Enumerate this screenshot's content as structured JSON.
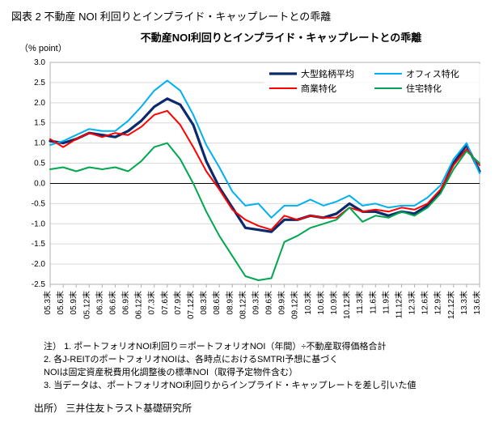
{
  "figure_caption": "図表 2  不動産 NOI 利回りとインプライド・キャップレートとの乖離",
  "chart": {
    "type": "line",
    "title": "不動産NOI利回りとインプライド・キャップレートとの乖離",
    "ylabel": "（% point）",
    "ylim": [
      -2.5,
      3.0
    ],
    "ytick_step": 0.5,
    "background_color": "#ffffff",
    "grid_color": "#d9d9d9",
    "axis_color": "#b0b0b0",
    "zero_line_color": "#000000",
    "title_fontsize": 13,
    "label_fontsize": 11,
    "tick_fontsize": 10,
    "x_categories": [
      "05.3末",
      "05.6末",
      "05.9末",
      "05.12末",
      "06.3末",
      "06.6末",
      "06.9末",
      "06.12末",
      "07.3末",
      "07.6末",
      "07.9末",
      "07.12末",
      "08.3末",
      "08.6末",
      "08.9末",
      "08.12末",
      "09.3末",
      "09.6末",
      "09.9末",
      "09.12末",
      "10.3末",
      "10.6末",
      "10.9末",
      "10.12末",
      "11.3末",
      "11.6末",
      "11.9末",
      "11.12末",
      "12.3末",
      "12.6末",
      "12.9末",
      "12.12末",
      "13.3末",
      "13.6末"
    ],
    "series": [
      {
        "name": "大型銘柄平均",
        "legend": "大型銘柄平均",
        "color": "#0b2a6b",
        "width": 3.2,
        "values": [
          1.05,
          1.0,
          1.1,
          1.25,
          1.2,
          1.15,
          1.3,
          1.55,
          1.9,
          2.1,
          1.95,
          1.45,
          0.55,
          -0.1,
          -0.6,
          -1.1,
          -1.15,
          -1.2,
          -0.9,
          -0.9,
          -0.8,
          -0.85,
          -0.75,
          -0.5,
          -0.7,
          -0.7,
          -0.8,
          -0.7,
          -0.75,
          -0.55,
          -0.2,
          0.5,
          0.95,
          0.3
        ]
      },
      {
        "name": "オフィス特化",
        "legend": "オフィス特化",
        "color": "#00b0f0",
        "width": 2.0,
        "values": [
          0.95,
          1.05,
          1.2,
          1.35,
          1.3,
          1.3,
          1.55,
          1.9,
          2.3,
          2.55,
          2.3,
          1.7,
          0.95,
          0.4,
          -0.2,
          -0.55,
          -0.5,
          -0.85,
          -0.55,
          -0.55,
          -0.4,
          -0.55,
          -0.45,
          -0.3,
          -0.55,
          -0.5,
          -0.6,
          -0.55,
          -0.55,
          -0.35,
          -0.05,
          0.6,
          1.0,
          0.25
        ]
      },
      {
        "name": "商業特化",
        "legend": "商業特化",
        "color": "#ff0000",
        "width": 2.0,
        "values": [
          1.1,
          0.9,
          1.1,
          1.25,
          1.15,
          1.25,
          1.2,
          1.4,
          1.7,
          1.8,
          1.45,
          0.9,
          0.3,
          -0.15,
          -0.65,
          -0.9,
          -1.05,
          -1.15,
          -0.8,
          -0.9,
          -0.8,
          -0.85,
          -0.85,
          -0.6,
          -0.7,
          -0.65,
          -0.7,
          -0.6,
          -0.65,
          -0.5,
          -0.15,
          0.45,
          0.85,
          0.45
        ]
      },
      {
        "name": "住宅特化",
        "legend": "住宅特化",
        "color": "#00a650",
        "width": 2.0,
        "values": [
          0.35,
          0.4,
          0.3,
          0.4,
          0.35,
          0.4,
          0.3,
          0.55,
          0.9,
          1.0,
          0.6,
          0.0,
          -0.7,
          -1.3,
          -1.8,
          -2.3,
          -2.4,
          -2.35,
          -1.45,
          -1.3,
          -1.1,
          -1.0,
          -0.9,
          -0.6,
          -0.95,
          -0.8,
          -0.85,
          -0.7,
          -0.8,
          -0.6,
          -0.25,
          0.35,
          0.8,
          0.5
        ]
      }
    ],
    "legend_position": "top-right-inside"
  },
  "notes_label": "注）",
  "notes": [
    "1. ポートフォリオNOI利回り＝ポートフォリオNOI（年間）÷不動産取得価格合計",
    "2. 各J-REITのポートフォリオNOIは、各時点におけるSMTRI予想に基づく",
    "    NOIは固定資産税費用化調整後の標準NOI（取得予定物件含む）",
    "3. 当データは、ポートフォリオNOI利回りからインプライド・キャップレートを差し引いた値"
  ],
  "source_label": "出所）",
  "source": "三井住友トラスト基礎研究所"
}
